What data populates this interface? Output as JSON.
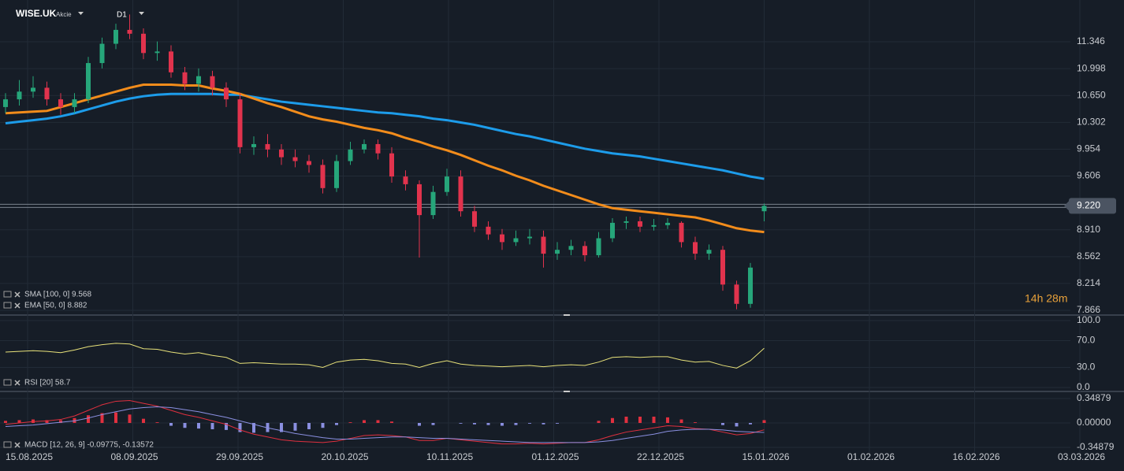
{
  "chart_data": {
    "type": "candlestick",
    "title": "WISE.UK",
    "subtitle": "Akcie",
    "timeframe": "D1",
    "open": [
      10.5,
      10.6,
      10.7,
      10.75,
      10.6,
      10.5,
      10.6,
      11.07,
      11.32,
      11.5,
      11.45,
      11.2,
      11.22,
      10.95,
      10.8,
      10.9,
      10.75,
      10.6,
      9.98,
      10.02,
      9.95,
      9.85,
      9.8,
      9.75,
      9.45,
      9.8,
      9.95,
      10.02,
      9.9,
      9.6,
      9.5,
      9.1,
      9.4,
      9.6,
      9.15,
      8.95,
      8.85,
      8.75,
      8.8,
      8.82,
      8.6,
      8.65,
      8.7,
      8.58,
      8.8,
      9.0,
      9.02,
      8.95,
      8.97,
      9.0,
      8.75,
      8.6,
      8.65,
      8.2,
      7.95,
      9.15
    ],
    "high": [
      10.68,
      10.85,
      10.9,
      10.83,
      10.68,
      10.68,
      11.15,
      11.4,
      11.58,
      11.7,
      11.52,
      11.35,
      11.3,
      11.02,
      11.0,
      10.97,
      10.82,
      10.68,
      10.12,
      10.15,
      10.02,
      9.95,
      9.88,
      9.82,
      9.88,
      10.05,
      10.08,
      10.08,
      9.98,
      9.68,
      9.55,
      9.48,
      9.7,
      9.68,
      9.22,
      9.02,
      8.92,
      8.9,
      8.92,
      8.9,
      8.75,
      8.78,
      8.76,
      8.88,
      9.06,
      9.08,
      9.08,
      9.05,
      9.06,
      9.02,
      8.82,
      8.72,
      8.7,
      8.25,
      8.48,
      9.25
    ],
    "low": [
      10.42,
      10.52,
      10.62,
      10.52,
      10.4,
      10.42,
      10.55,
      11.0,
      11.25,
      11.38,
      11.12,
      11.1,
      10.88,
      10.72,
      10.7,
      10.65,
      10.5,
      9.9,
      9.88,
      9.85,
      9.75,
      9.72,
      9.65,
      9.38,
      9.4,
      9.75,
      9.9,
      9.82,
      9.52,
      9.42,
      8.55,
      9.05,
      9.35,
      9.08,
      8.88,
      8.78,
      8.65,
      8.7,
      8.72,
      8.42,
      8.52,
      8.58,
      8.5,
      8.55,
      8.75,
      8.92,
      8.88,
      8.9,
      8.92,
      8.68,
      8.52,
      8.52,
      8.12,
      7.88,
      7.9,
      9.02
    ],
    "close": [
      10.6,
      10.7,
      10.75,
      10.6,
      10.5,
      10.6,
      11.07,
      11.32,
      11.5,
      11.45,
      11.2,
      11.22,
      10.95,
      10.8,
      10.9,
      10.75,
      10.6,
      9.98,
      10.02,
      9.95,
      9.85,
      9.8,
      9.75,
      9.45,
      9.8,
      9.95,
      10.02,
      9.9,
      9.6,
      9.5,
      9.1,
      9.4,
      9.6,
      9.15,
      8.95,
      8.85,
      8.75,
      8.8,
      8.82,
      8.6,
      8.65,
      8.7,
      8.58,
      8.8,
      9.0,
      9.02,
      8.95,
      8.97,
      9.0,
      8.75,
      8.6,
      8.65,
      8.2,
      7.95,
      8.42,
      9.22
    ],
    "up_color": "#26a67a",
    "down_color": "#e1334d",
    "series": [
      {
        "name": "SMA [100, 0] 9.568",
        "color": "#1d9cea",
        "values": [
          10.29,
          10.31,
          10.33,
          10.35,
          10.38,
          10.42,
          10.47,
          10.52,
          10.57,
          10.61,
          10.64,
          10.66,
          10.67,
          10.67,
          10.67,
          10.67,
          10.66,
          10.66,
          10.63,
          10.6,
          10.57,
          10.55,
          10.53,
          10.51,
          10.49,
          10.47,
          10.45,
          10.43,
          10.42,
          10.4,
          10.38,
          10.35,
          10.33,
          10.3,
          10.27,
          10.23,
          10.19,
          10.15,
          10.12,
          10.08,
          10.04,
          10.0,
          9.96,
          9.93,
          9.9,
          9.88,
          9.86,
          9.83,
          9.8,
          9.77,
          9.74,
          9.71,
          9.68,
          9.64,
          9.6,
          9.57
        ]
      },
      {
        "name": "EMA [50, 0] 8.882",
        "color": "#f28c1b",
        "values": [
          10.42,
          10.43,
          10.44,
          10.45,
          10.5,
          10.55,
          10.6,
          10.65,
          10.7,
          10.75,
          10.79,
          10.79,
          10.79,
          10.78,
          10.78,
          10.74,
          10.71,
          10.67,
          10.61,
          10.55,
          10.5,
          10.44,
          10.38,
          10.34,
          10.31,
          10.27,
          10.23,
          10.2,
          10.16,
          10.1,
          10.05,
          9.99,
          9.94,
          9.88,
          9.81,
          9.74,
          9.68,
          9.61,
          9.55,
          9.48,
          9.42,
          9.36,
          9.3,
          9.24,
          9.19,
          9.17,
          9.15,
          9.13,
          9.11,
          9.09,
          9.07,
          9.03,
          8.98,
          8.93,
          8.9,
          8.88
        ]
      }
    ],
    "ylim": [
      7.805,
      11.887
    ],
    "yticks": [
      {
        "value": 11.346,
        "label": "11.346"
      },
      {
        "value": 10.998,
        "label": "10.998"
      },
      {
        "value": 10.65,
        "label": "10.650"
      },
      {
        "value": 10.302,
        "label": "10.302"
      },
      {
        "value": 9.954,
        "label": "9.954"
      },
      {
        "value": 9.606,
        "label": "9.606"
      },
      {
        "value": 8.91,
        "label": "8.910"
      },
      {
        "value": 8.562,
        "label": "8.562"
      },
      {
        "value": 8.214,
        "label": "8.214"
      },
      {
        "value": 7.866,
        "label": "7.866"
      }
    ],
    "last_price": {
      "value": 9.22,
      "label": "9.220"
    },
    "countdown": "14h 28m",
    "xlabels": [
      "15.08.2025",
      "08.09.2025",
      "29.09.2025",
      "20.10.2025",
      "10.11.2025",
      "01.12.2025",
      "22.12.2025",
      "15.01.2026",
      "01.02.2026",
      "16.02.2026",
      "03.03.2026"
    ],
    "rsi": {
      "name": "RSI [20] 58.7",
      "color": "#e8e27a",
      "ylim": [
        0,
        100
      ],
      "yticks": [
        {
          "value": 100,
          "label": "100.0"
        },
        {
          "value": 70,
          "label": "70.0"
        },
        {
          "value": 30,
          "label": "30.0"
        },
        {
          "value": 0,
          "label": "0.0"
        }
      ],
      "values": [
        53,
        54,
        55,
        54,
        52,
        56,
        61,
        64,
        66,
        65,
        58,
        57,
        53,
        50,
        52,
        48,
        45,
        36,
        37,
        36,
        35,
        35,
        34,
        30,
        38,
        41,
        42,
        40,
        36,
        35,
        30,
        36,
        40,
        35,
        33,
        32,
        31,
        32,
        33,
        31,
        33,
        34,
        33,
        38,
        45,
        46,
        45,
        46,
        46,
        41,
        38,
        39,
        33,
        29,
        40,
        58.7
      ]
    },
    "macd": {
      "name": "MACD [12, 26, 9] -0.09775, -0.13572",
      "ylim": [
        -0.34879,
        0.34879
      ],
      "yticks": [
        {
          "value": 0.34879,
          "label": "0.34879"
        },
        {
          "value": 0,
          "label": "0.00000"
        },
        {
          "value": -0.34879,
          "label": "-0.34879"
        }
      ],
      "macd_color": "#e0303f",
      "signal_color": "#8a8fe0",
      "hist_up_color": "#e0303f",
      "hist_down_color": "#8a8fe0",
      "macd": [
        -0.02,
        0.0,
        0.02,
        0.03,
        0.05,
        0.1,
        0.18,
        0.26,
        0.31,
        0.32,
        0.28,
        0.24,
        0.18,
        0.12,
        0.08,
        0.03,
        -0.02,
        -0.1,
        -0.16,
        -0.2,
        -0.24,
        -0.26,
        -0.27,
        -0.28,
        -0.26,
        -0.22,
        -0.18,
        -0.17,
        -0.18,
        -0.2,
        -0.25,
        -0.25,
        -0.22,
        -0.24,
        -0.26,
        -0.28,
        -0.3,
        -0.3,
        -0.29,
        -0.3,
        -0.29,
        -0.28,
        -0.28,
        -0.24,
        -0.18,
        -0.13,
        -0.1,
        -0.07,
        -0.04,
        -0.05,
        -0.08,
        -0.09,
        -0.13,
        -0.17,
        -0.15,
        -0.09775
      ],
      "signal": [
        -0.05,
        -0.04,
        -0.03,
        -0.01,
        0.01,
        0.03,
        0.07,
        0.12,
        0.16,
        0.2,
        0.22,
        0.23,
        0.22,
        0.19,
        0.16,
        0.12,
        0.08,
        0.03,
        -0.02,
        -0.07,
        -0.11,
        -0.15,
        -0.18,
        -0.21,
        -0.23,
        -0.23,
        -0.22,
        -0.21,
        -0.2,
        -0.2,
        -0.21,
        -0.22,
        -0.22,
        -0.23,
        -0.24,
        -0.25,
        -0.26,
        -0.27,
        -0.28,
        -0.28,
        -0.28,
        -0.28,
        -0.28,
        -0.27,
        -0.25,
        -0.22,
        -0.19,
        -0.16,
        -0.12,
        -0.1,
        -0.09,
        -0.09,
        -0.1,
        -0.12,
        -0.13,
        -0.13572
      ],
      "histogram": [
        0.03,
        0.04,
        0.05,
        0.04,
        0.04,
        0.07,
        0.11,
        0.14,
        0.15,
        0.12,
        0.06,
        0.01,
        -0.04,
        -0.07,
        -0.08,
        -0.09,
        -0.1,
        -0.13,
        -0.14,
        -0.13,
        -0.13,
        -0.11,
        -0.09,
        -0.07,
        -0.03,
        0.01,
        0.04,
        0.04,
        0.02,
        0.0,
        -0.04,
        -0.03,
        0.0,
        -0.01,
        -0.02,
        -0.03,
        -0.04,
        -0.03,
        -0.01,
        -0.02,
        -0.01,
        0.0,
        0.0,
        0.03,
        0.07,
        0.09,
        0.09,
        0.09,
        0.08,
        0.05,
        0.01,
        0.0,
        -0.03,
        -0.05,
        -0.02,
        0.04
      ]
    }
  }
}
